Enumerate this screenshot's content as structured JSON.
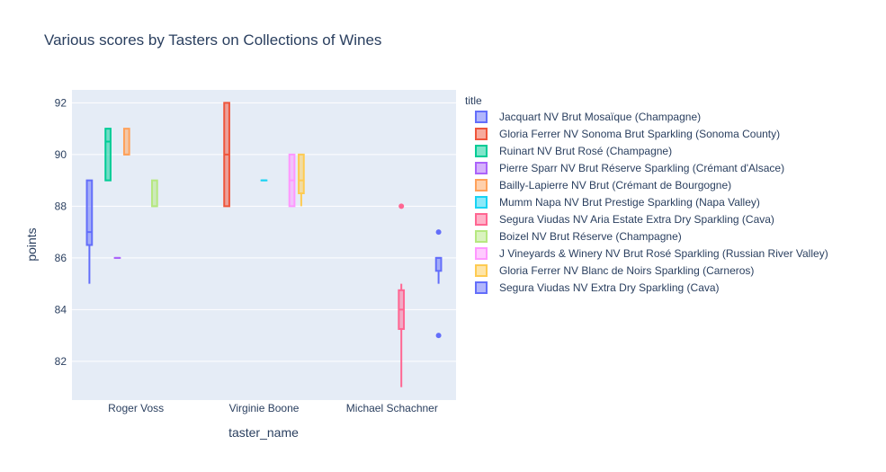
{
  "chart_data": {
    "type": "box",
    "title": "Various scores by Tasters on Collections of Wines",
    "xlabel": "taster_name",
    "ylabel": "points",
    "categories": [
      "Roger Voss",
      "Virginie Boone",
      "Michael Schachner"
    ],
    "ylim": [
      80.5,
      92.5
    ],
    "yticks": [
      82,
      84,
      86,
      88,
      90,
      92
    ],
    "grid": true,
    "legend_title": "title",
    "legend_position": "right",
    "series": [
      {
        "name": "Jacquart NV Brut Mosaïque  (Champagne)",
        "color": "#636efa",
        "boxes": [
          {
            "category": "Roger Voss",
            "min": 85,
            "q1": 86.5,
            "median": 87,
            "q3": 89,
            "max": 89,
            "outliers": []
          }
        ]
      },
      {
        "name": "Gloria Ferrer NV Sonoma Brut Sparkling (Sonoma County)",
        "color": "#EF553B",
        "boxes": [
          {
            "category": "Virginie Boone",
            "min": 88,
            "q1": 88,
            "median": 90,
            "q3": 92,
            "max": 92,
            "outliers": []
          }
        ]
      },
      {
        "name": "Ruinart NV Brut Rosé  (Champagne)",
        "color": "#00cc96",
        "boxes": [
          {
            "category": "Roger Voss",
            "min": 89,
            "q1": 89,
            "median": 90.5,
            "q3": 91,
            "max": 91,
            "outliers": []
          }
        ]
      },
      {
        "name": "Pierre Sparr NV Brut Réserve Sparkling (Crémant d'Alsace)",
        "color": "#ab63fa",
        "boxes": [
          {
            "category": "Roger Voss",
            "min": 86,
            "q1": 86,
            "median": 86,
            "q3": 86,
            "max": 86,
            "outliers": []
          }
        ]
      },
      {
        "name": "Bailly-Lapierre NV Brut  (Crémant de Bourgogne)",
        "color": "#FFA15A",
        "boxes": [
          {
            "category": "Roger Voss",
            "min": 90,
            "q1": 90,
            "median": 90,
            "q3": 91,
            "max": 91,
            "outliers": []
          }
        ]
      },
      {
        "name": "Mumm Napa NV Brut Prestige Sparkling (Napa Valley)",
        "color": "#19d3f3",
        "boxes": [
          {
            "category": "Virginie Boone",
            "min": 89,
            "q1": 89,
            "median": 89,
            "q3": 89,
            "max": 89,
            "outliers": []
          }
        ]
      },
      {
        "name": "Segura Viudas NV Aria Estate Extra Dry Sparkling (Cava)",
        "color": "#FF6692",
        "boxes": [
          {
            "category": "Michael Schachner",
            "min": 81,
            "q1": 83.25,
            "median": 84,
            "q3": 84.75,
            "max": 85,
            "outliers": [
              88
            ]
          }
        ]
      },
      {
        "name": "Boizel NV Brut Réserve  (Champagne)",
        "color": "#B6E880",
        "boxes": [
          {
            "category": "Roger Voss",
            "min": 88,
            "q1": 88,
            "median": 88,
            "q3": 89,
            "max": 89,
            "outliers": []
          }
        ]
      },
      {
        "name": "J Vineyards & Winery NV Brut Rosé Sparkling (Russian River Valley)",
        "color": "#FF97FF",
        "boxes": [
          {
            "category": "Virginie Boone",
            "min": 88,
            "q1": 88,
            "median": 89,
            "q3": 90,
            "max": 90,
            "outliers": []
          }
        ]
      },
      {
        "name": "Gloria Ferrer NV Blanc de Noirs Sparkling (Carneros)",
        "color": "#FECB52",
        "boxes": [
          {
            "category": "Virginie Boone",
            "min": 88,
            "q1": 88.5,
            "median": 89,
            "q3": 90,
            "max": 90,
            "outliers": []
          }
        ]
      },
      {
        "name": "Segura Viudas NV Extra Dry Sparkling (Cava)",
        "color": "#636efa",
        "boxes": [
          {
            "category": "Michael Schachner",
            "min": 85,
            "q1": 85.5,
            "median": 86,
            "q3": 86,
            "max": 86,
            "outliers": [
              83,
              87
            ]
          }
        ]
      }
    ]
  }
}
